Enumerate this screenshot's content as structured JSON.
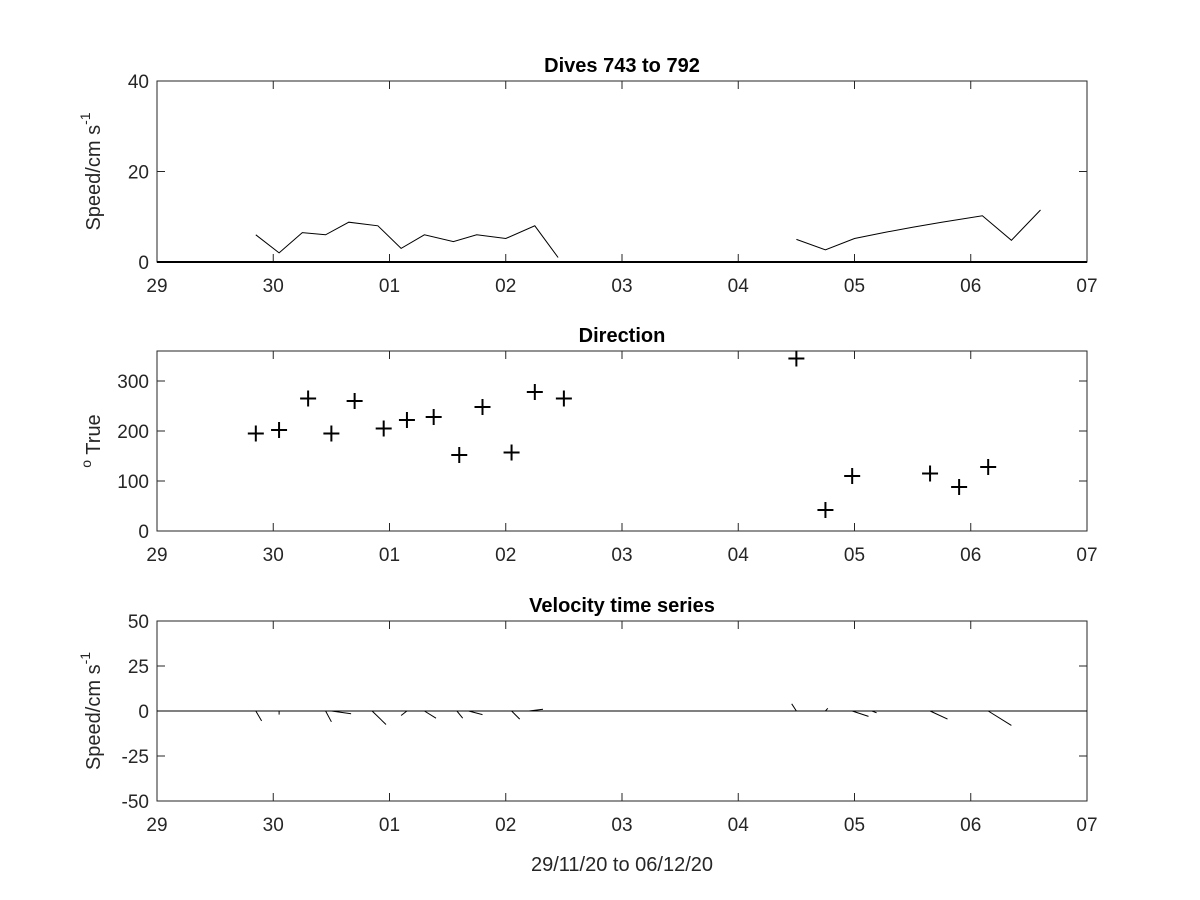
{
  "chart_data": [
    {
      "type": "line",
      "title": "Dives 743 to 792",
      "ylabel": "Speed/cm s",
      "ylabel_sup": "-1",
      "xlabel": "",
      "x_tick_labels": [
        "29",
        "30",
        "01",
        "02",
        "03",
        "04",
        "05",
        "06",
        "07"
      ],
      "y_ticks": [
        0,
        20,
        40
      ],
      "xlim": [
        0,
        8
      ],
      "ylim": [
        0,
        40
      ],
      "grid": false,
      "baseline": 0,
      "series": [
        {
          "segments": [
            {
              "x": [
                0.85,
                1.05,
                1.25,
                1.45,
                1.65,
                1.9,
                2.1,
                2.3,
                2.55,
                2.75,
                3.0,
                3.25,
                3.45
              ],
              "y": [
                6,
                2,
                6.5,
                6,
                8.8,
                8,
                3,
                6,
                4.5,
                6,
                5.2,
                8,
                1
              ]
            },
            {
              "x": [
                5.5,
                5.75,
                6.0,
                6.25,
                6.5,
                6.75,
                7.1,
                7.35,
                7.6
              ],
              "y": [
                5,
                2.7,
                5.2,
                6.5,
                7.7,
                8.8,
                10.2,
                4.8,
                11.5
              ]
            }
          ]
        }
      ]
    },
    {
      "type": "scatter",
      "title": "Direction",
      "ylabel": "True",
      "ylabel_sup": "o",
      "xlabel": "",
      "x_tick_labels": [
        "29",
        "30",
        "01",
        "02",
        "03",
        "04",
        "05",
        "06",
        "07"
      ],
      "y_ticks": [
        0,
        100,
        200,
        300
      ],
      "xlim": [
        0,
        8
      ],
      "ylim": [
        0,
        360
      ],
      "grid": false,
      "marker": "+",
      "x": [
        0.85,
        1.05,
        1.3,
        1.5,
        1.7,
        1.95,
        2.15,
        2.38,
        2.6,
        2.8,
        3.05,
        3.25,
        3.5,
        5.5,
        5.75,
        5.98,
        6.65,
        6.9,
        7.15
      ],
      "y": [
        195,
        202,
        265,
        195,
        260,
        205,
        222,
        228,
        152,
        248,
        157,
        278,
        265,
        345,
        42,
        110,
        115,
        88,
        128
      ]
    },
    {
      "type": "line",
      "title": "Velocity time series",
      "ylabel": "Speed/cm s",
      "ylabel_sup": "-1",
      "xlabel": "29/11/20 to 06/12/20",
      "x_tick_labels": [
        "29",
        "30",
        "01",
        "02",
        "03",
        "04",
        "05",
        "06",
        "07"
      ],
      "y_ticks": [
        50,
        25,
        0,
        -25,
        -50
      ],
      "xlim": [
        0,
        8
      ],
      "ylim": [
        -50,
        50
      ],
      "grid": false,
      "baseline": 0,
      "sticks": [
        {
          "x": 0.85,
          "u": 0.05,
          "v": -5.5
        },
        {
          "x": 1.05,
          "u": 0.0,
          "v": -2
        },
        {
          "x": 1.45,
          "u": 0.05,
          "v": -6
        },
        {
          "x": 1.5,
          "u": 0.17,
          "v": -1.5
        },
        {
          "x": 1.85,
          "u": 0.12,
          "v": -7.5
        },
        {
          "x": 2.15,
          "u": -0.05,
          "v": -2.5
        },
        {
          "x": 2.3,
          "u": 0.1,
          "v": -4
        },
        {
          "x": 2.58,
          "u": 0.05,
          "v": -4
        },
        {
          "x": 2.68,
          "u": 0.12,
          "v": -2
        },
        {
          "x": 3.05,
          "u": 0.07,
          "v": -4.5
        },
        {
          "x": 3.2,
          "u": 0.12,
          "v": 1
        },
        {
          "x": 5.5,
          "u": -0.04,
          "v": 4
        },
        {
          "x": 5.75,
          "u": 0.02,
          "v": 1.5
        },
        {
          "x": 5.98,
          "u": 0.14,
          "v": -3
        },
        {
          "x": 6.15,
          "u": 0.04,
          "v": -1
        },
        {
          "x": 6.65,
          "u": 0.15,
          "v": -4.5
        },
        {
          "x": 7.15,
          "u": 0.2,
          "v": -8
        }
      ]
    }
  ]
}
